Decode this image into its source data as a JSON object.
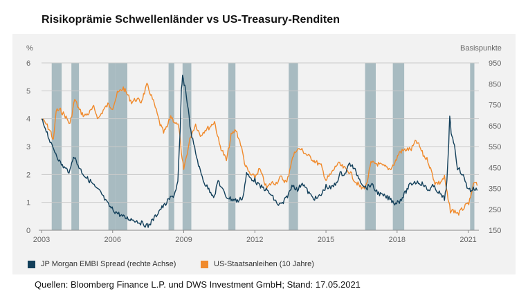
{
  "title": "Risikoprämie Schwellenländer vs US-Treasury-Renditen",
  "source": "Quellen: Bloomberg Finance L.P. und DWS Investment GmbH; Stand: 17.05.2021",
  "colors": {
    "navy": "#123f5a",
    "orange": "#f08a2c",
    "band": "#a8bbc1",
    "grid": "#c9c9c9",
    "panel": "#f2f2f2"
  },
  "chart_data": {
    "type": "line",
    "left_axis_label": "%",
    "right_axis_label": "Basispunkte",
    "x_ticks": [
      "2003",
      "2006",
      "2009",
      "2012",
      "2015",
      "2018",
      "2021"
    ],
    "x_range": [
      2003.0,
      2021.45
    ],
    "ylim_left": [
      0,
      6
    ],
    "left_ticks": [
      "0",
      "1",
      "2",
      "3",
      "4",
      "5",
      "6"
    ],
    "ylim_right": [
      150,
      950
    ],
    "right_ticks": [
      "150",
      "250",
      "350",
      "450",
      "550",
      "650",
      "750",
      "850",
      "950"
    ],
    "shaded_periods": [
      [
        2003.43,
        2003.85
      ],
      [
        2004.26,
        2004.58
      ],
      [
        2005.82,
        2006.12
      ],
      [
        2006.12,
        2006.62
      ],
      [
        2008.36,
        2008.6
      ],
      [
        2008.95,
        2009.32
      ],
      [
        2010.88,
        2011.18
      ],
      [
        2013.43,
        2013.82
      ],
      [
        2016.65,
        2017.1
      ],
      [
        2017.82,
        2018.3
      ],
      [
        2021.08,
        2021.26
      ]
    ],
    "series": [
      {
        "name": "JP Morgan EMBI Spread (rechte Achse)",
        "axis": "right",
        "color": "#123f5a",
        "points": [
          [
            2003.0,
            680
          ],
          [
            2003.2,
            630
          ],
          [
            2003.4,
            560
          ],
          [
            2003.6,
            520
          ],
          [
            2003.8,
            470
          ],
          [
            2004.0,
            445
          ],
          [
            2004.2,
            430
          ],
          [
            2004.35,
            510
          ],
          [
            2004.5,
            470
          ],
          [
            2004.7,
            430
          ],
          [
            2004.9,
            400
          ],
          [
            2005.1,
            380
          ],
          [
            2005.3,
            350
          ],
          [
            2005.5,
            330
          ],
          [
            2005.7,
            290
          ],
          [
            2005.9,
            260
          ],
          [
            2006.1,
            240
          ],
          [
            2006.3,
            225
          ],
          [
            2006.5,
            210
          ],
          [
            2006.7,
            205
          ],
          [
            2006.9,
            200
          ],
          [
            2007.1,
            190
          ],
          [
            2007.3,
            180
          ],
          [
            2007.5,
            170
          ],
          [
            2007.6,
            185
          ],
          [
            2007.8,
            215
          ],
          [
            2008.0,
            250
          ],
          [
            2008.2,
            270
          ],
          [
            2008.4,
            300
          ],
          [
            2008.6,
            320
          ],
          [
            2008.75,
            380
          ],
          [
            2008.85,
            620
          ],
          [
            2008.9,
            820
          ],
          [
            2008.95,
            880
          ],
          [
            2009.05,
            840
          ],
          [
            2009.15,
            760
          ],
          [
            2009.3,
            620
          ],
          [
            2009.5,
            520
          ],
          [
            2009.7,
            430
          ],
          [
            2009.9,
            370
          ],
          [
            2010.1,
            340
          ],
          [
            2010.3,
            310
          ],
          [
            2010.45,
            390
          ],
          [
            2010.6,
            350
          ],
          [
            2010.8,
            310
          ],
          [
            2011.0,
            300
          ],
          [
            2011.3,
            290
          ],
          [
            2011.5,
            310
          ],
          [
            2011.65,
            420
          ],
          [
            2011.8,
            400
          ],
          [
            2012.0,
            390
          ],
          [
            2012.2,
            360
          ],
          [
            2012.4,
            350
          ],
          [
            2012.6,
            330
          ],
          [
            2012.8,
            300
          ],
          [
            2013.0,
            270
          ],
          [
            2013.2,
            280
          ],
          [
            2013.45,
            330
          ],
          [
            2013.6,
            370
          ],
          [
            2013.8,
            340
          ],
          [
            2014.0,
            380
          ],
          [
            2014.2,
            340
          ],
          [
            2014.4,
            310
          ],
          [
            2014.6,
            300
          ],
          [
            2014.8,
            320
          ],
          [
            2015.0,
            360
          ],
          [
            2015.2,
            350
          ],
          [
            2015.4,
            370
          ],
          [
            2015.6,
            420
          ],
          [
            2015.8,
            420
          ],
          [
            2016.0,
            470
          ],
          [
            2016.15,
            450
          ],
          [
            2016.3,
            420
          ],
          [
            2016.5,
            380
          ],
          [
            2016.7,
            350
          ],
          [
            2016.9,
            370
          ],
          [
            2017.1,
            340
          ],
          [
            2017.3,
            320
          ],
          [
            2017.5,
            310
          ],
          [
            2017.7,
            300
          ],
          [
            2017.9,
            280
          ],
          [
            2018.1,
            290
          ],
          [
            2018.3,
            320
          ],
          [
            2018.5,
            360
          ],
          [
            2018.7,
            380
          ],
          [
            2018.9,
            380
          ],
          [
            2019.1,
            370
          ],
          [
            2019.3,
            340
          ],
          [
            2019.5,
            360
          ],
          [
            2019.7,
            340
          ],
          [
            2019.9,
            310
          ],
          [
            2020.0,
            300
          ],
          [
            2020.1,
            380
          ],
          [
            2020.18,
            560
          ],
          [
            2020.22,
            700
          ],
          [
            2020.28,
            620
          ],
          [
            2020.38,
            580
          ],
          [
            2020.55,
            450
          ],
          [
            2020.75,
            420
          ],
          [
            2020.95,
            360
          ],
          [
            2021.1,
            340
          ],
          [
            2021.25,
            350
          ],
          [
            2021.38,
            340
          ]
        ]
      },
      {
        "name": "US-Staatsanleihen (10 Jahre)",
        "axis": "left",
        "color": "#f08a2c",
        "points": [
          [
            2003.0,
            4.0
          ],
          [
            2003.2,
            3.8
          ],
          [
            2003.4,
            3.5
          ],
          [
            2003.5,
            3.2
          ],
          [
            2003.62,
            4.3
          ],
          [
            2003.8,
            4.3
          ],
          [
            2004.0,
            4.1
          ],
          [
            2004.2,
            3.8
          ],
          [
            2004.4,
            4.7
          ],
          [
            2004.6,
            4.3
          ],
          [
            2004.8,
            4.1
          ],
          [
            2005.0,
            4.2
          ],
          [
            2005.2,
            4.4
          ],
          [
            2005.4,
            4.0
          ],
          [
            2005.6,
            4.3
          ],
          [
            2005.8,
            4.5
          ],
          [
            2006.0,
            4.4
          ],
          [
            2006.2,
            4.9
          ],
          [
            2006.45,
            5.1
          ],
          [
            2006.6,
            4.9
          ],
          [
            2006.8,
            4.6
          ],
          [
            2007.0,
            4.7
          ],
          [
            2007.2,
            4.6
          ],
          [
            2007.45,
            5.2
          ],
          [
            2007.6,
            4.9
          ],
          [
            2007.8,
            4.4
          ],
          [
            2008.0,
            3.8
          ],
          [
            2008.15,
            3.5
          ],
          [
            2008.3,
            3.7
          ],
          [
            2008.45,
            4.1
          ],
          [
            2008.6,
            3.9
          ],
          [
            2008.8,
            3.7
          ],
          [
            2008.9,
            2.7
          ],
          [
            2009.0,
            2.2
          ],
          [
            2009.15,
            2.8
          ],
          [
            2009.3,
            3.4
          ],
          [
            2009.5,
            3.8
          ],
          [
            2009.7,
            3.4
          ],
          [
            2009.9,
            3.6
          ],
          [
            2010.1,
            3.7
          ],
          [
            2010.3,
            3.9
          ],
          [
            2010.5,
            3.1
          ],
          [
            2010.8,
            2.5
          ],
          [
            2011.0,
            3.4
          ],
          [
            2011.2,
            3.6
          ],
          [
            2011.4,
            3.1
          ],
          [
            2011.6,
            2.3
          ],
          [
            2011.8,
            2.0
          ],
          [
            2012.0,
            1.9
          ],
          [
            2012.2,
            2.2
          ],
          [
            2012.5,
            1.5
          ],
          [
            2012.7,
            1.7
          ],
          [
            2012.9,
            1.7
          ],
          [
            2013.1,
            1.9
          ],
          [
            2013.35,
            1.7
          ],
          [
            2013.55,
            2.5
          ],
          [
            2013.75,
            2.9
          ],
          [
            2013.95,
            2.9
          ],
          [
            2014.2,
            2.7
          ],
          [
            2014.5,
            2.5
          ],
          [
            2014.8,
            2.3
          ],
          [
            2015.0,
            1.8
          ],
          [
            2015.2,
            2.0
          ],
          [
            2015.5,
            2.4
          ],
          [
            2015.8,
            2.2
          ],
          [
            2016.0,
            2.1
          ],
          [
            2016.2,
            1.8
          ],
          [
            2016.5,
            1.5
          ],
          [
            2016.7,
            1.6
          ],
          [
            2016.9,
            2.4
          ],
          [
            2017.1,
            2.4
          ],
          [
            2017.4,
            2.3
          ],
          [
            2017.7,
            2.2
          ],
          [
            2017.9,
            2.4
          ],
          [
            2018.1,
            2.8
          ],
          [
            2018.4,
            2.9
          ],
          [
            2018.6,
            2.9
          ],
          [
            2018.8,
            3.2
          ],
          [
            2018.95,
            3.0
          ],
          [
            2019.1,
            2.7
          ],
          [
            2019.3,
            2.5
          ],
          [
            2019.6,
            1.7
          ],
          [
            2019.8,
            1.7
          ],
          [
            2020.0,
            1.9
          ],
          [
            2020.15,
            1.1
          ],
          [
            2020.25,
            0.7
          ],
          [
            2020.4,
            0.7
          ],
          [
            2020.6,
            0.6
          ],
          [
            2020.8,
            0.8
          ],
          [
            2020.95,
            0.9
          ],
          [
            2021.1,
            1.1
          ],
          [
            2021.2,
            1.6
          ],
          [
            2021.3,
            1.7
          ],
          [
            2021.38,
            1.6
          ]
        ]
      }
    ]
  }
}
